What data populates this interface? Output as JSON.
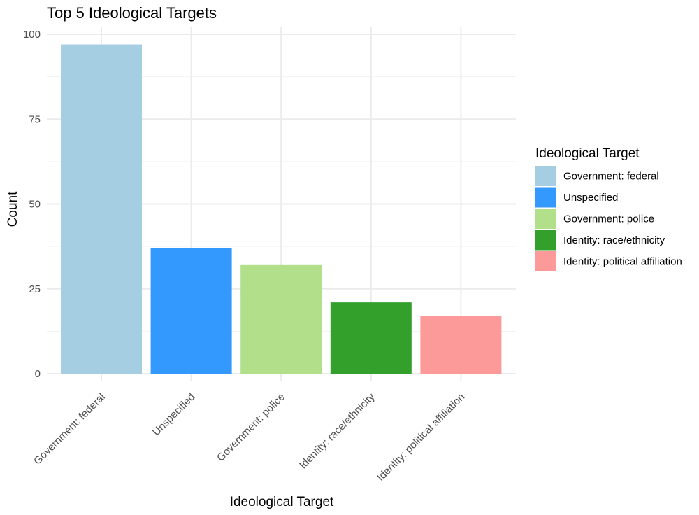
{
  "chart_data": {
    "type": "bar",
    "title": "Top 5 Ideological Targets",
    "xlabel": "Ideological Target",
    "ylabel": "Count",
    "categories": [
      "Government: federal",
      "Unspecified",
      "Government: police",
      "Identity: race/ethnicity",
      "Identity: political affiliation"
    ],
    "values": [
      97,
      37,
      32,
      21,
      17
    ],
    "colors": [
      "#a6cee3",
      "#3399ff",
      "#b2df8a",
      "#33a02c",
      "#fb9a99"
    ],
    "ylim": [
      0,
      100
    ],
    "yticks": [
      0,
      25,
      50,
      75,
      100
    ],
    "grid": true,
    "legend": {
      "title": "Ideological Target",
      "placement": "right",
      "entries": [
        "Government: federal",
        "Unspecified",
        "Government: police",
        "Identity: race/ethnicity",
        "Identity: political affiliation"
      ]
    }
  }
}
